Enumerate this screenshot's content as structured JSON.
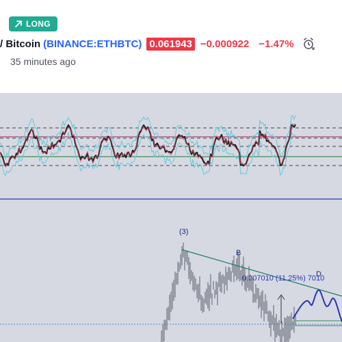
{
  "idea": {
    "direction_label": "LONG",
    "title_text": "/ Bitcoin",
    "symbol": "(BINANCE:ETHBTC)",
    "price": "0.061943",
    "change": "−0.000922",
    "change_percent": "−1.47%",
    "time_ago": "35 minutes ago",
    "icons": {
      "direction": "arrow-up-right-icon",
      "alert": "alarm-clock-icon"
    }
  },
  "chart": {
    "wave_labels": [
      "(3)",
      "B",
      "D"
    ],
    "measure_label": "0.007010 (11.25%) 7010",
    "colors": {
      "long": "#22ab94",
      "negative": "#f23645",
      "symbol": "#2962ff",
      "pane_background": "#d6d9e2",
      "trendline": "#1b7a6b",
      "projection": "#2a36b1"
    }
  }
}
